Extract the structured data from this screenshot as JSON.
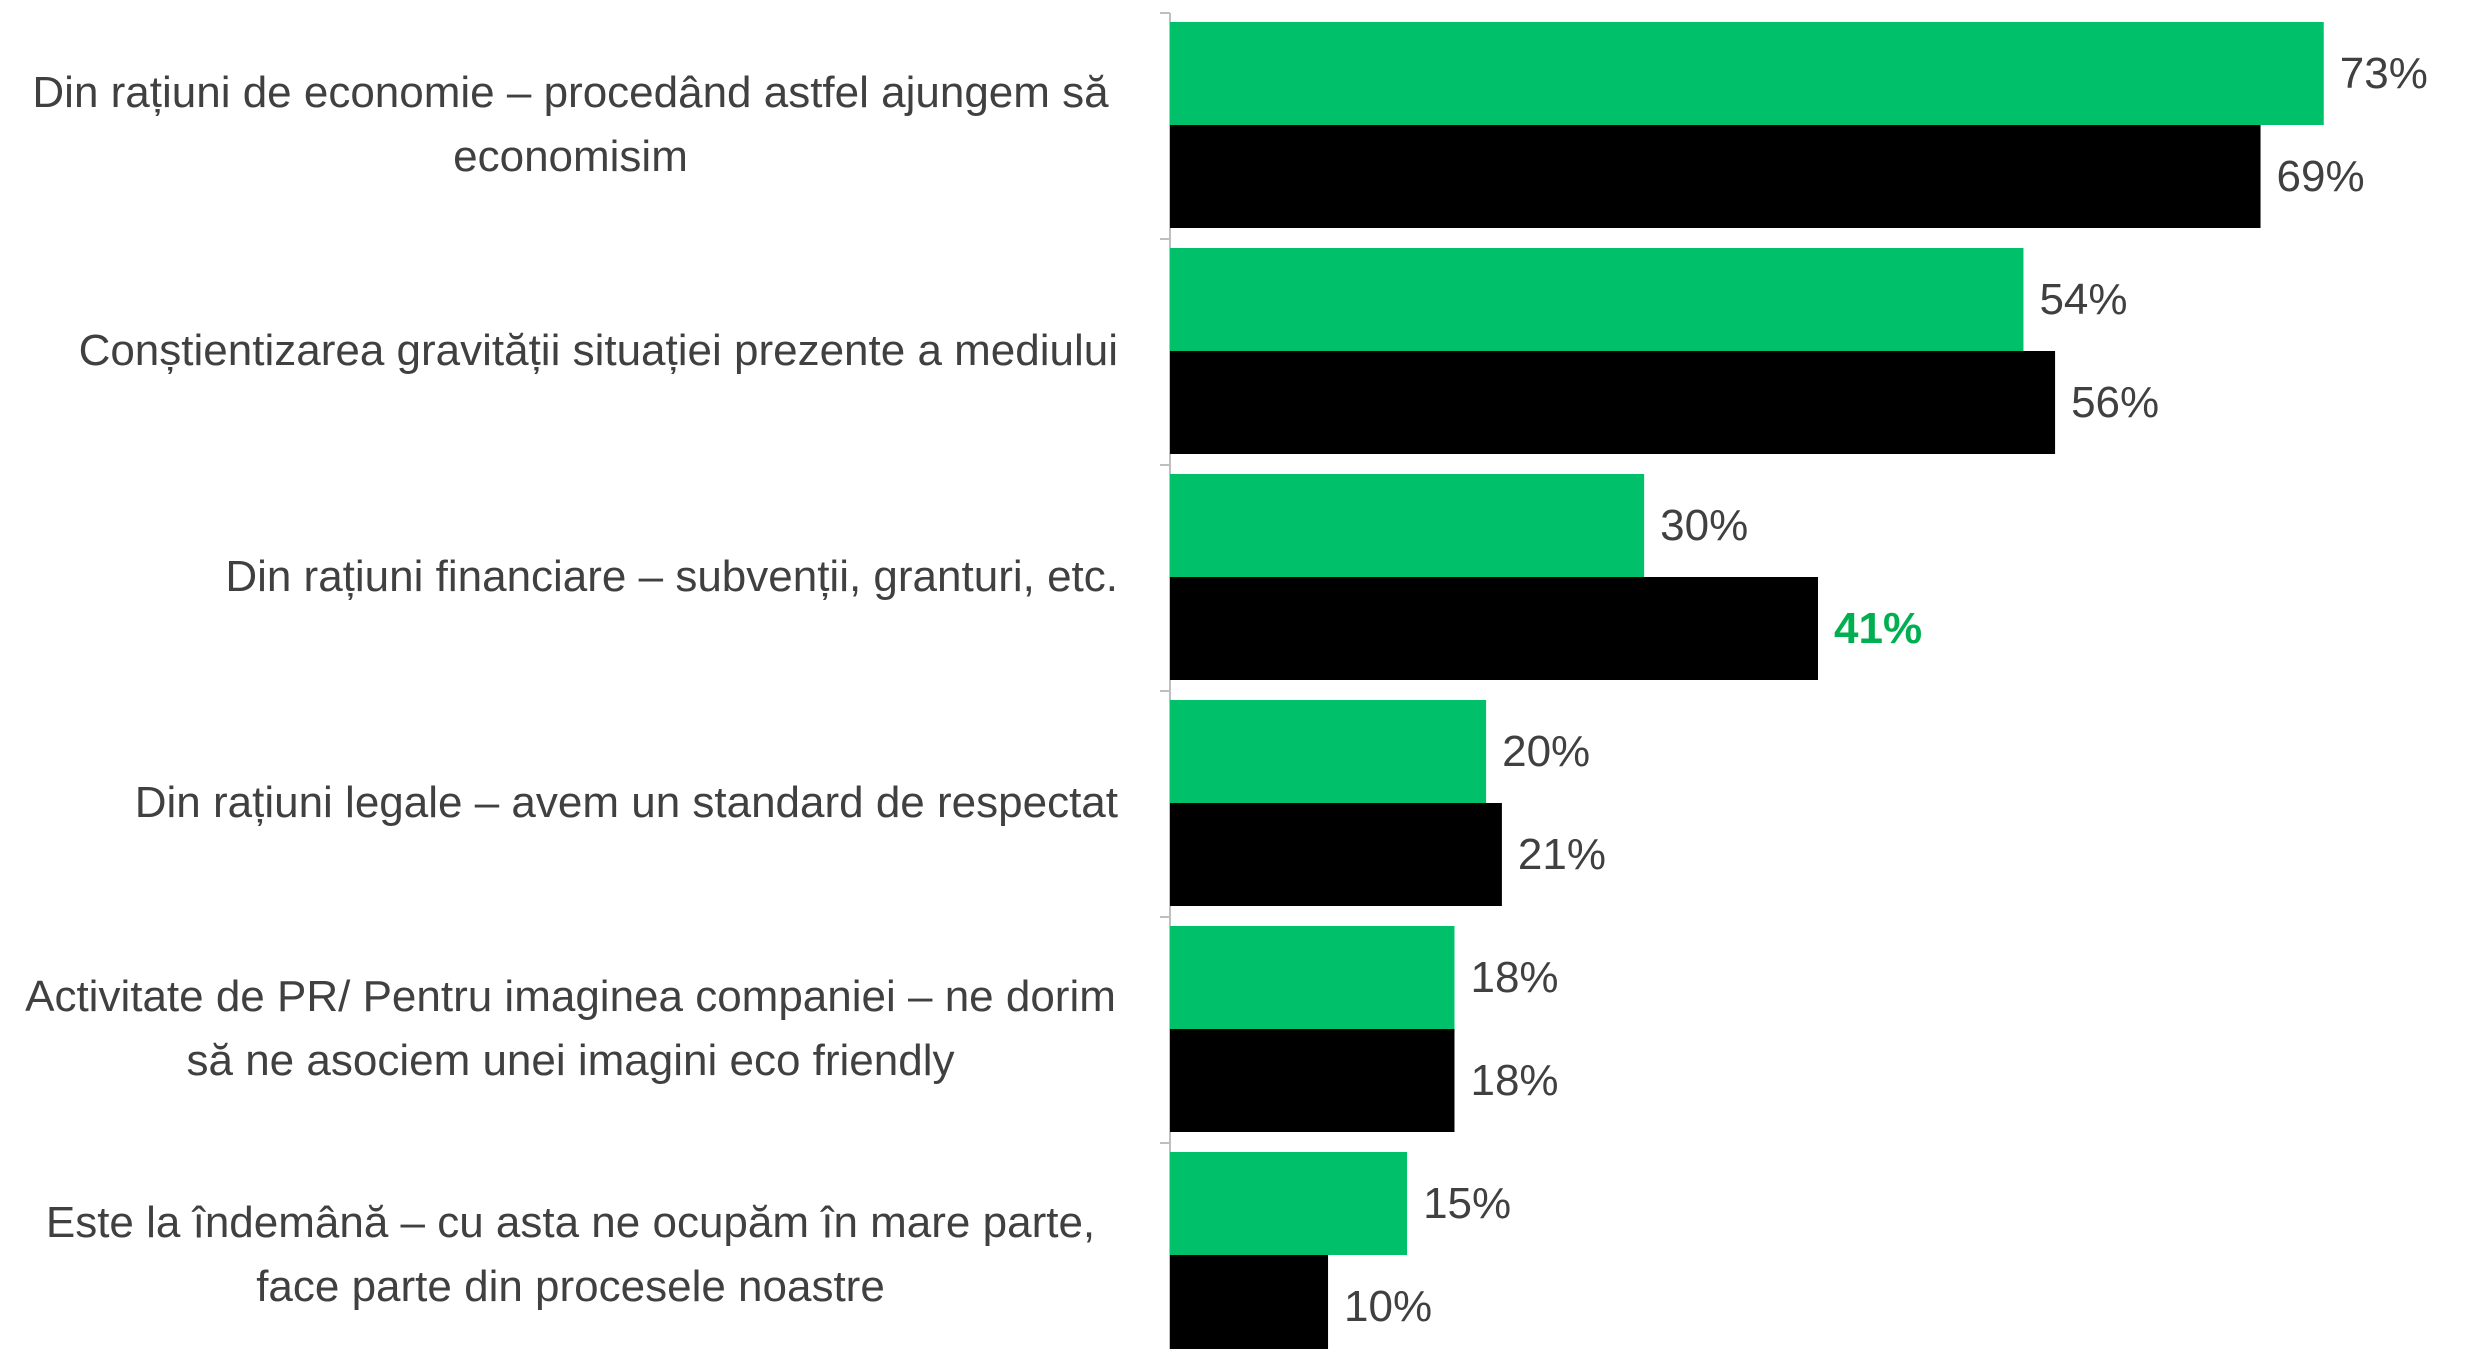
{
  "chart_data": {
    "type": "hbar",
    "categories": [
      "Din rațiuni de economie – procedând astfel ajungem să economisim",
      "Conștientizarea gravității situației prezente a mediului",
      "Din rațiuni financiare – subvenții, granturi, etc.",
      "Din rațiuni legale – avem un standard de respectat",
      "Activitate de PR/ Pentru imaginea companiei – ne dorim să ne asociem unei imagini eco friendly",
      "Este la îndemână – cu asta ne ocupăm în mare parte, face parte din procesele noastre"
    ],
    "series": [
      {
        "color": "#00c16a",
        "values": [
          73,
          54,
          30,
          20,
          18,
          15
        ],
        "value_labels": [
          "73%",
          "54%",
          "30%",
          "20%",
          "18%",
          "15%"
        ],
        "highlight_labels": [
          false,
          false,
          false,
          false,
          false,
          false
        ]
      },
      {
        "color": "#000000",
        "values": [
          69,
          56,
          41,
          21,
          18,
          10
        ],
        "value_labels": [
          "69%",
          "56%",
          "41%",
          "21%",
          "18%",
          "10%"
        ],
        "highlight_labels": [
          false,
          false,
          true,
          false,
          false,
          false
        ]
      }
    ],
    "label_color": "#404040",
    "highlight_color": "#00b050",
    "xlim": [
      0,
      82
    ]
  }
}
